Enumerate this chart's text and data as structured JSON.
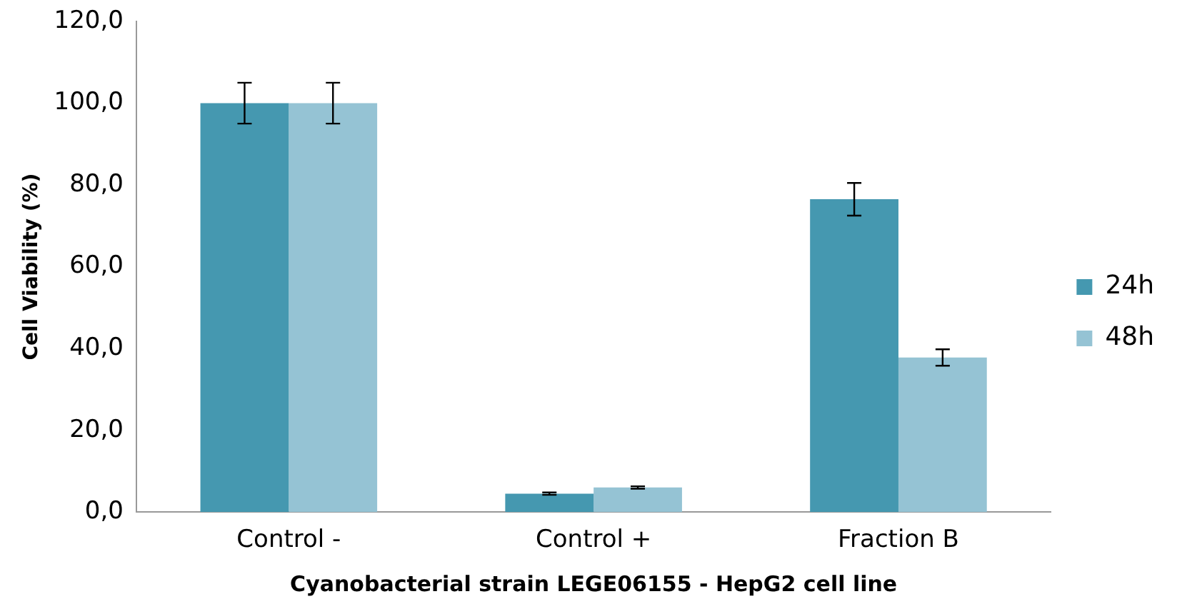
{
  "chart_data": {
    "type": "bar",
    "xlabel": "Cyanobacterial strain LEGE06155 - HepG2 cell line",
    "ylabel": "Cell Viability (%)",
    "categories": [
      "Control -",
      "Control +",
      "Fraction B"
    ],
    "series": [
      {
        "name": "24h",
        "color": "#4598b0",
        "values": [
          100,
          4.5,
          76.5
        ],
        "errors": [
          5,
          0.3,
          4
        ]
      },
      {
        "name": "48h",
        "color": "#95c3d4",
        "values": [
          100,
          6.0,
          37.8
        ],
        "errors": [
          5,
          0.3,
          2
        ]
      }
    ],
    "ylim": [
      0,
      120
    ],
    "yticks": [
      {
        "value": 0,
        "label": "0,0"
      },
      {
        "value": 20,
        "label": "20,0"
      },
      {
        "value": 40,
        "label": "40,0"
      },
      {
        "value": 60,
        "label": "60,0"
      },
      {
        "value": 80,
        "label": "80,0"
      },
      {
        "value": 100,
        "label": "100,0"
      },
      {
        "value": 120,
        "label": "120,0"
      }
    ],
    "grid": false,
    "legend": "right"
  }
}
